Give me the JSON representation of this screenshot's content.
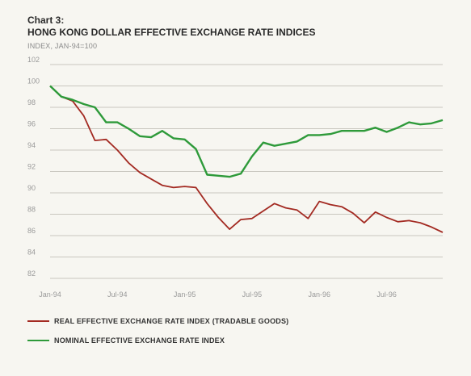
{
  "chart_number": "Chart 3:",
  "chart_data": {
    "type": "line",
    "title": "HONG KONG DOLLAR EFFECTIVE EXCHANGE RATE INDICES",
    "subtitle": "INDEX, JAN-94=100",
    "xlabel": "",
    "ylabel": "",
    "ylim": [
      82,
      102
    ],
    "yticks": [
      82,
      84,
      86,
      88,
      90,
      92,
      94,
      96,
      98,
      100,
      102
    ],
    "ytick_labels": [
      "82",
      "84",
      "86",
      "88",
      "90",
      "92",
      "94",
      "96",
      "98",
      "100",
      "102"
    ],
    "xlim": [
      0,
      35
    ],
    "xticks": [
      0,
      6,
      12,
      18,
      24,
      30
    ],
    "xtick_labels": [
      "Jan-94",
      "Jul-94",
      "Jan-95",
      "Jul-95",
      "Jan-96",
      "Jul-96"
    ],
    "grid": true,
    "legend_position": "bottom",
    "series": [
      {
        "name": "REAL EFFECTIVE EXCHANGE RATE INDEX (TRADABLE GOODS)",
        "color": "#a32a22",
        "x": [
          0,
          1,
          2,
          3,
          4,
          5,
          6,
          7,
          8,
          9,
          10,
          11,
          12,
          13,
          14,
          15,
          16,
          17,
          18,
          19,
          20,
          21,
          22,
          23,
          24,
          25,
          26,
          27,
          28,
          29,
          30,
          31,
          32,
          33,
          34,
          35
        ],
        "values": [
          100,
          99.0,
          98.6,
          97.2,
          94.9,
          95.0,
          94.0,
          92.8,
          91.9,
          91.3,
          90.7,
          90.5,
          90.6,
          90.5,
          89.0,
          87.7,
          86.6,
          87.5,
          87.6,
          88.3,
          89.0,
          88.6,
          88.4,
          87.6,
          89.2,
          88.9,
          88.7,
          88.1,
          87.2,
          88.2,
          87.7,
          87.3,
          87.4,
          87.2,
          86.8,
          86.3
        ]
      },
      {
        "name": "NOMINAL EFFECTIVE EXCHANGE RATE INDEX",
        "color": "#2e9a3a",
        "x": [
          0,
          1,
          2,
          3,
          4,
          5,
          6,
          7,
          8,
          9,
          10,
          11,
          12,
          13,
          14,
          15,
          16,
          17,
          18,
          19,
          20,
          21,
          22,
          23,
          24,
          25,
          26,
          27,
          28,
          29,
          30,
          31,
          32,
          33,
          34,
          35
        ],
        "values": [
          100,
          99.0,
          98.7,
          98.3,
          98.0,
          96.6,
          96.6,
          96.0,
          95.3,
          95.2,
          95.8,
          95.1,
          95.0,
          94.1,
          91.7,
          91.6,
          91.5,
          91.8,
          93.4,
          94.7,
          94.4,
          94.6,
          94.8,
          95.4,
          95.4,
          95.5,
          95.8,
          95.8,
          95.8,
          96.1,
          95.7,
          96.1,
          96.6,
          96.4,
          96.5,
          96.8
        ]
      }
    ]
  }
}
